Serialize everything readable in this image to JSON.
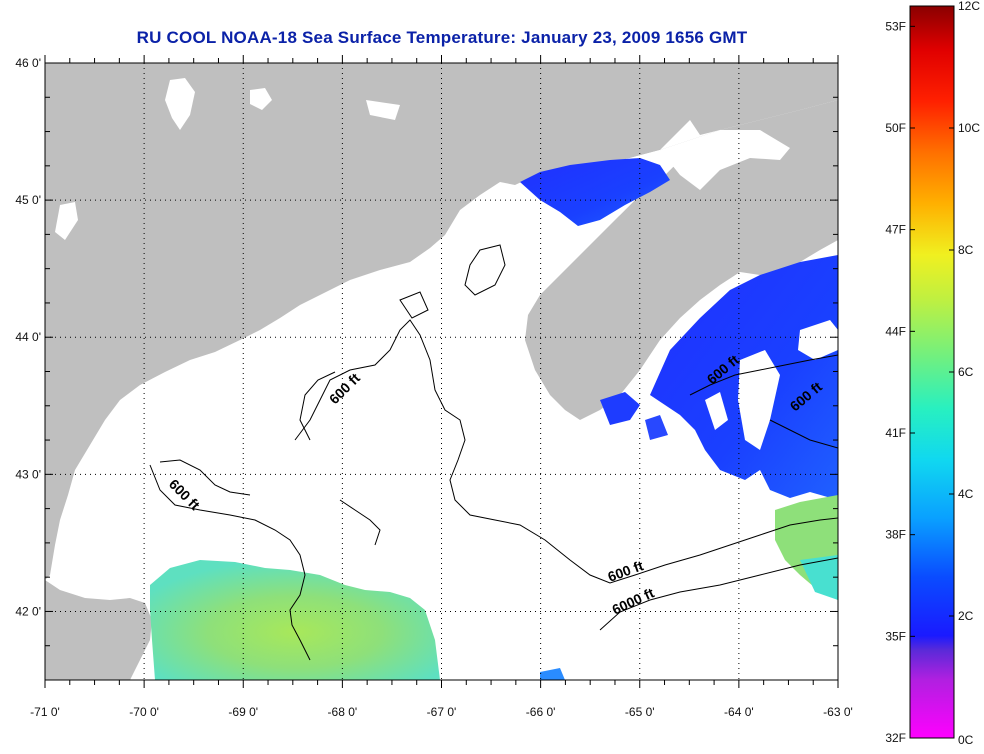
{
  "title": "RU COOL  NOAA-18  Sea Surface Temperature:  January 23, 2009 1656 GMT",
  "map": {
    "lon_range": [
      -71,
      -63
    ],
    "lat_range": [
      41.5,
      46
    ],
    "lon_ticks": [
      "-71 0'",
      "-70 0'",
      "-69 0'",
      "-68 0'",
      "-67 0'",
      "-66 0'",
      "-65 0'",
      "-64 0'",
      "-63 0'"
    ],
    "lat_ticks": [
      "46 0'",
      "45 0'",
      "44 0'",
      "43 0'",
      "42 0'"
    ],
    "contour_labels": [
      "600 ft",
      "600 ft",
      "600 ft",
      "6000 ft",
      "600 ft",
      "600 ft"
    ],
    "land_color": "#bfbfbf",
    "cloud_color": "#ffffff"
  },
  "colorbar": {
    "fahrenheit_labels": [
      "53F",
      "50F",
      "47F",
      "44F",
      "41F",
      "38F",
      "35F",
      "32F"
    ],
    "celsius_labels": [
      "12C",
      "10C",
      "8C",
      "6C",
      "4C",
      "2C",
      "0C"
    ]
  }
}
